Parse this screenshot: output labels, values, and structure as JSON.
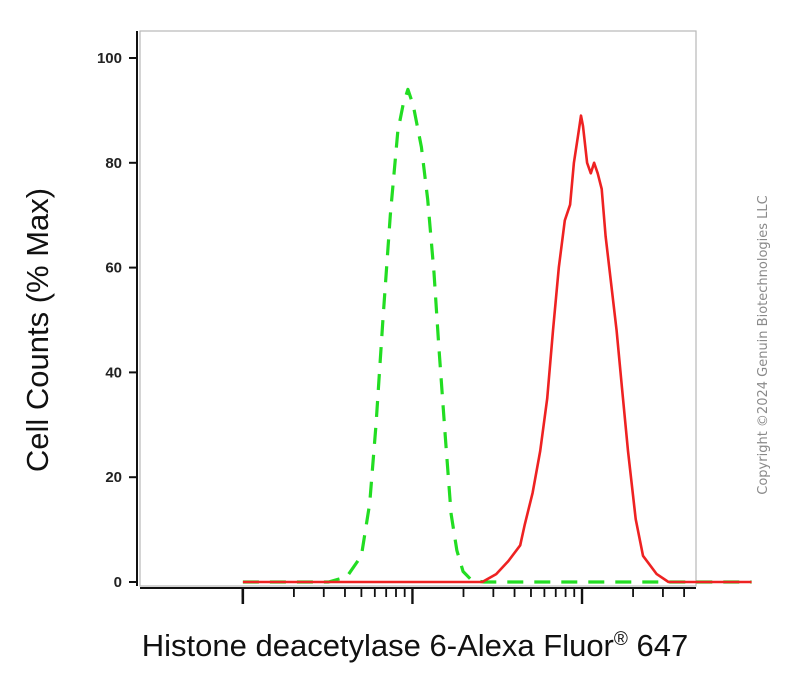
{
  "chart_data": {
    "type": "line",
    "title": "",
    "xlabel": "Histone deacetylase 6-Alexa Fluor",
    "xlabel_reg": "®",
    "xlabel_tail": " 647",
    "ylabel": "Cell Counts (% Max)",
    "xscale": "log",
    "xlim": [
      1,
      1000
    ],
    "ylim": [
      0,
      100
    ],
    "yticks": [
      0,
      20,
      40,
      60,
      80,
      100
    ],
    "ytick_labels": [
      "0",
      "20",
      "40",
      "60",
      "80",
      "100"
    ],
    "grid": false,
    "legend": "none",
    "series": [
      {
        "color": "#22dd22",
        "style": "dashed",
        "points": [
          [
            1,
            0
          ],
          [
            3.2,
            0
          ],
          [
            4.1,
            1
          ],
          [
            5.0,
            5
          ],
          [
            5.6,
            15
          ],
          [
            6.1,
            30
          ],
          [
            6.7,
            50
          ],
          [
            7.4,
            70
          ],
          [
            8.2,
            86
          ],
          [
            8.8,
            91
          ],
          [
            9.4,
            94
          ],
          [
            10.1,
            91
          ],
          [
            11.3,
            83
          ],
          [
            12.3,
            73
          ],
          [
            13.4,
            59
          ],
          [
            14.3,
            45
          ],
          [
            15.6,
            28
          ],
          [
            16.9,
            13
          ],
          [
            18.3,
            6
          ],
          [
            19.9,
            2
          ],
          [
            22.4,
            0.3
          ],
          [
            26.5,
            0
          ],
          [
            1000,
            0
          ]
        ]
      },
      {
        "color": "#ee2222",
        "style": "solid",
        "points": [
          [
            1,
            0
          ],
          [
            25.8,
            0
          ],
          [
            31.2,
            1.5
          ],
          [
            36.8,
            4
          ],
          [
            43.2,
            7
          ],
          [
            46.0,
            11
          ],
          [
            51.1,
            17
          ],
          [
            56.7,
            25
          ],
          [
            62.3,
            35
          ],
          [
            67.4,
            48
          ],
          [
            73.0,
            60
          ],
          [
            79.2,
            69
          ],
          [
            85.0,
            72
          ],
          [
            89.6,
            80
          ],
          [
            94.5,
            85
          ],
          [
            98.6,
            89
          ],
          [
            101.4,
            87
          ],
          [
            107.1,
            80
          ],
          [
            112.6,
            78
          ],
          [
            117.9,
            80
          ],
          [
            123.8,
            78
          ],
          [
            130.7,
            75
          ],
          [
            137.8,
            66
          ],
          [
            148.4,
            57
          ],
          [
            159.9,
            48
          ],
          [
            172.1,
            37
          ],
          [
            186.7,
            25
          ],
          [
            207.4,
            12
          ],
          [
            228.8,
            5
          ],
          [
            275.8,
            1.5
          ],
          [
            323.5,
            0
          ],
          [
            1000,
            0
          ]
        ]
      }
    ]
  },
  "watermark": "Copyright ©2024 Genuin Biotechnologies LLC"
}
